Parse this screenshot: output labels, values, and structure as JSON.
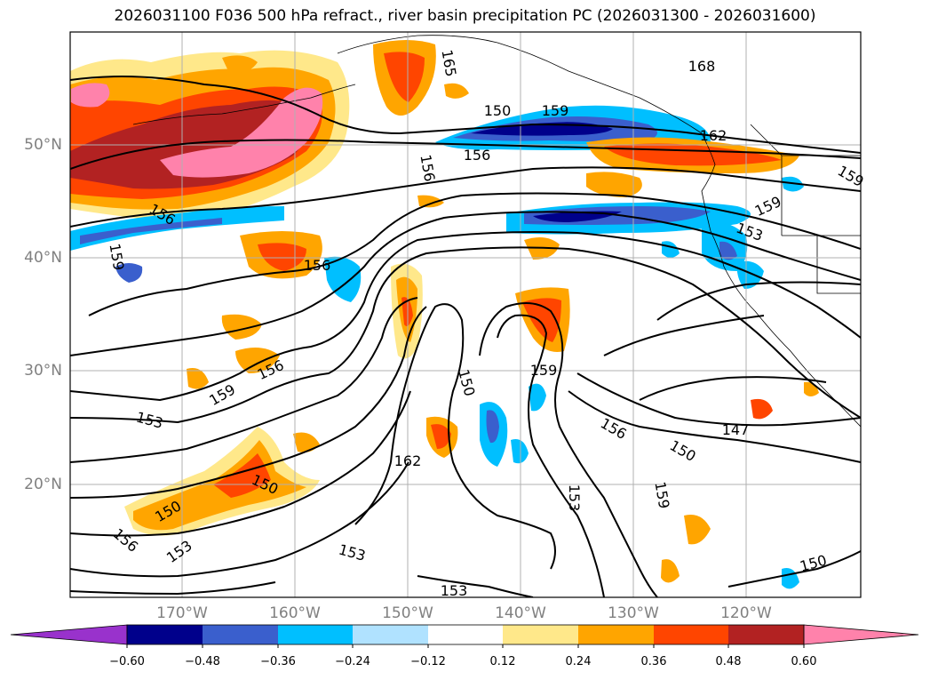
{
  "title": "2026031100 F036 500 hPa refract., river basin precipitation PC (2026031300 - 2026031600)",
  "lat_labels": [
    "50°N",
    "40°N",
    "30°N",
    "20°N"
  ],
  "lon_labels": [
    "170°W",
    "160°W",
    "150°W",
    "140°W",
    "130°W",
    "120°W"
  ],
  "contour_labels": [
    "165",
    "168",
    "162",
    "156",
    "156",
    "159",
    "159",
    "156",
    "159",
    "153",
    "156",
    "153",
    "156",
    "159",
    "150",
    "159",
    "153",
    "162",
    "156",
    "150",
    "153",
    "159",
    "147",
    "150",
    "153",
    "150",
    "156",
    "153",
    "150",
    "150",
    "159"
  ],
  "colorbar": {
    "ticks": [
      "−0.60",
      "−0.48",
      "−0.36",
      "−0.24",
      "−0.12",
      "0.12",
      "0.24",
      "0.36",
      "0.48",
      "0.60"
    ],
    "colors": [
      "#9932cc",
      "#00008b",
      "#3a5fcd",
      "#00bfff",
      "#b0e2ff",
      "#ffffff",
      "#ffe88a",
      "#ffa500",
      "#ff4500",
      "#b22222",
      "#ff82ab"
    ]
  }
}
